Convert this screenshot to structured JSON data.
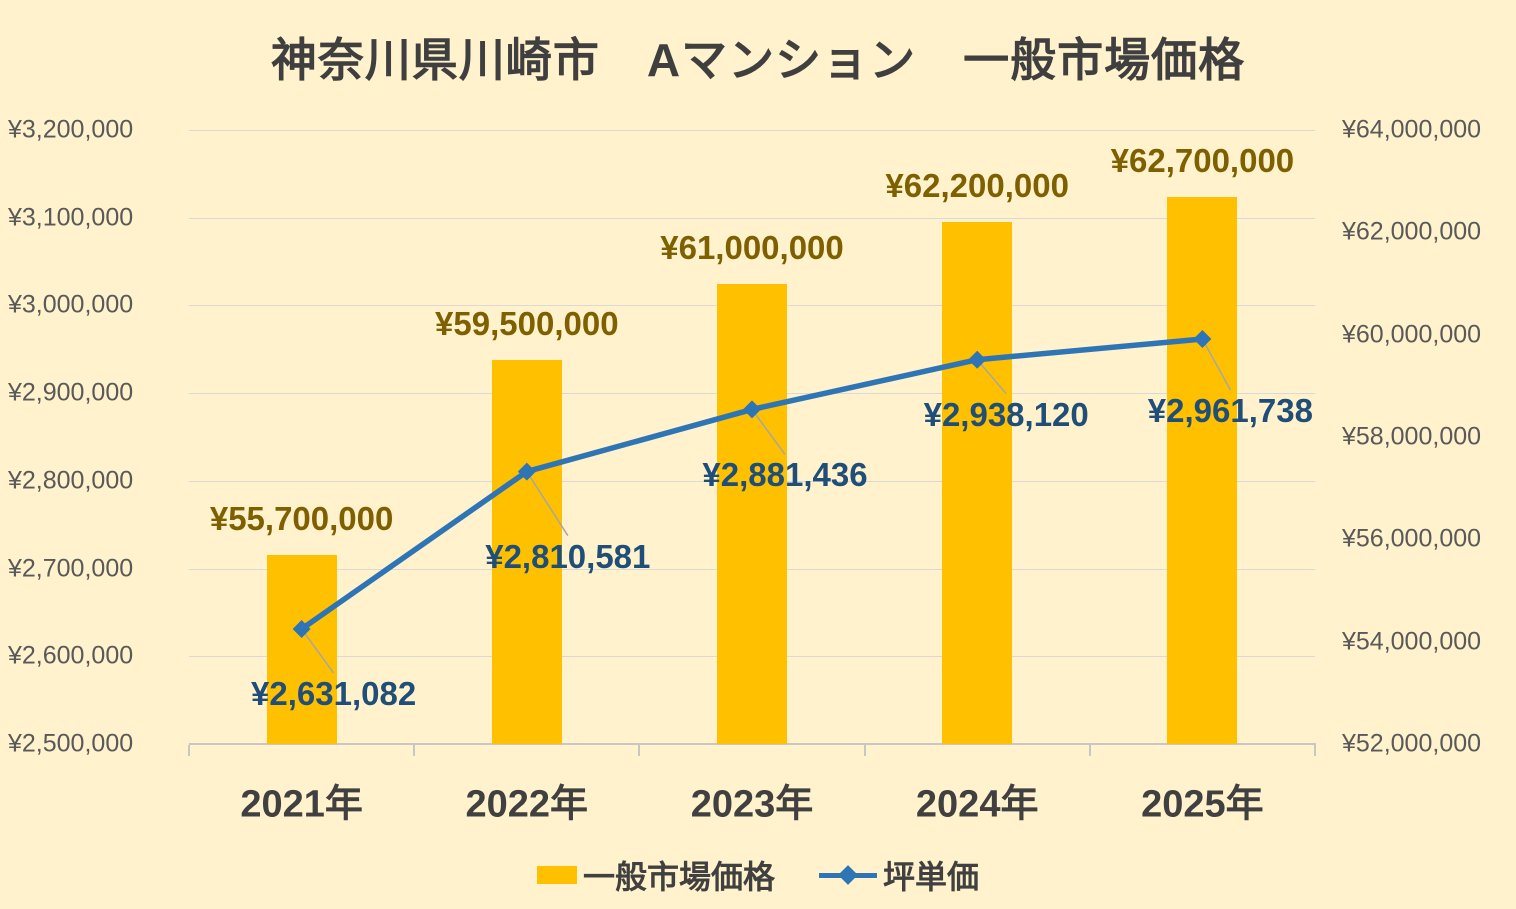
{
  "title": "神奈川県川崎市　Aマンション　一般市場価格",
  "chart_data": {
    "type": "bar+line",
    "title": "神奈川県川崎市　Aマンション　一般市場価格",
    "categories": [
      "2021年",
      "2022年",
      "2023年",
      "2024年",
      "2025年"
    ],
    "series": [
      {
        "name": "一般市場価格",
        "type": "bar",
        "axis": "right",
        "color": "#FFC000",
        "values": [
          55700000,
          59500000,
          61000000,
          62200000,
          62700000
        ],
        "labels": [
          "¥55,700,000",
          "¥59,500,000",
          "¥61,000,000",
          "¥62,200,000",
          "¥62,700,000"
        ]
      },
      {
        "name": "坪単価",
        "type": "line",
        "axis": "left",
        "color": "#2E75B6",
        "values": [
          2631082,
          2810581,
          2881436,
          2938120,
          2961738
        ],
        "labels": [
          "¥2,631,082",
          "¥2,810,581",
          "¥2,881,436",
          "¥2,938,120",
          "¥2,961,738"
        ]
      }
    ],
    "left_axis": {
      "min": 2500000,
      "max": 3200000,
      "step": 100000,
      "tick_labels": [
        "¥3,200,000",
        "¥3,100,000",
        "¥3,000,000",
        "¥2,900,000",
        "¥2,800,000",
        "¥2,700,000",
        "¥2,600,000",
        "¥2,500,000"
      ]
    },
    "right_axis": {
      "min": 52000000,
      "max": 64000000,
      "step": 2000000,
      "tick_labels": [
        "¥64,000,000",
        "¥62,000,000",
        "¥60,000,000",
        "¥58,000,000",
        "¥56,000,000",
        "¥54,000,000",
        "¥52,000,000"
      ]
    },
    "grid": true,
    "legend_position": "bottom"
  },
  "legend": {
    "items": [
      {
        "label": "一般市場価格",
        "swatch": "bar-square"
      },
      {
        "label": "坪単価",
        "swatch": "line-diamond"
      }
    ]
  },
  "colors": {
    "background": "#FFF2CC",
    "bar": "#FFC000",
    "line": "#2E75B6",
    "bar_label": "#7F6000",
    "line_label": "#1F4E79",
    "axis_text": "#595959",
    "title_text": "#3F3F3F",
    "grid": "#D9D9D9",
    "axis_line": "#C9C7C5",
    "leader": "#A6A6A6"
  }
}
